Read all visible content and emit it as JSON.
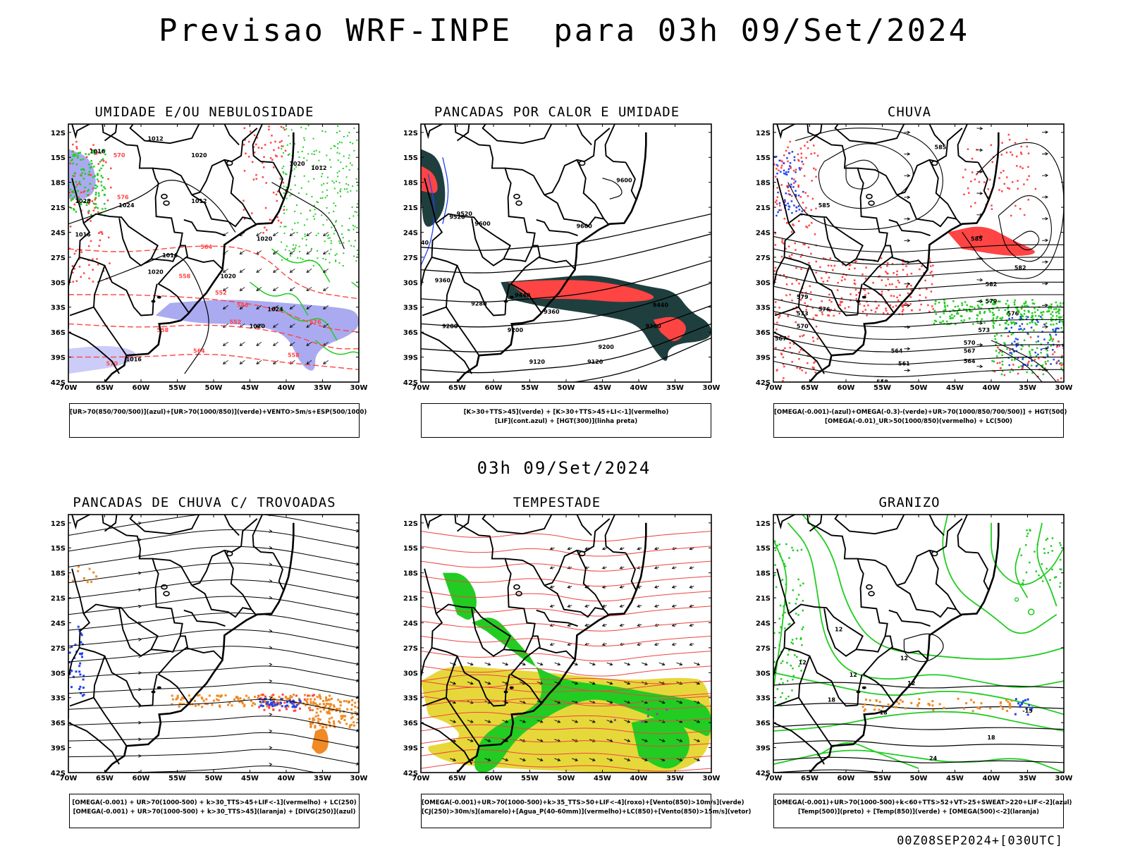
{
  "title": "Previsao WRF-INPE  para 03h 09/Set/2024",
  "mid_title": "03h 09/Set/2024",
  "footer": "00Z08SEP2024+[030UTC]",
  "axis": {
    "lat_labels": [
      "12S",
      "15S",
      "18S",
      "21S",
      "24S",
      "27S",
      "30S",
      "33S",
      "36S",
      "39S",
      "42S"
    ],
    "lon_labels": [
      "70W",
      "65W",
      "60W",
      "55W",
      "50W",
      "45W",
      "40W",
      "35W",
      "30W"
    ]
  },
  "colors": {
    "humid_blue": "#9b9bef",
    "humid_blue_light": "#c6c6f7",
    "green": "#22cc22",
    "red": "#ff4444",
    "dark_teal": "#1f3f3f",
    "blue": "#2244ee",
    "orange": "#f08a24",
    "yellow": "#e6d83a",
    "purple": "#9a3fb0"
  },
  "panels": [
    {
      "id": "umidade",
      "title": "UMIDADE E/OU NEBULOSIDADE",
      "legend": [
        "[UR>70(850/700/500)](azul)+[UR>70(1000/850)](verde)+VENTO>5m/s+ESP(500/1000)"
      ],
      "labels": [
        "1012",
        "1016",
        "1020",
        "1024",
        "1028",
        "1016",
        "1012",
        "1016",
        "1020",
        "1020",
        "1020",
        "1024",
        "1020",
        "1016",
        "1020",
        "1012",
        "570",
        "576",
        "564",
        "558",
        "552",
        "546",
        "552",
        "558",
        "564",
        "570",
        "576",
        "558"
      ]
    },
    {
      "id": "pancadas-calor",
      "title": "PANCADAS POR CALOR E UMIDADE",
      "legend": [
        "[K>30+TTS>45](verde) + [K>30+TTS>45+LI<-1](vermelho)",
        "[LIF](cont.azul) + [HGT(300)](linha preta)"
      ],
      "labels": [
        "9520",
        "9600",
        "9600",
        "9600",
        "9440",
        "9360",
        "9280",
        "9200",
        "9120",
        "9520",
        "9440",
        "9360",
        "9200",
        "9120",
        "9360",
        "9440",
        "9280"
      ]
    },
    {
      "id": "chuva",
      "title": "CHUVA",
      "legend": [
        "[OMEGA(-0.001)-(azul)+OMEGA(-0.3)-(verde)+UR>70(1000/850/700/500)] + HGT(500)",
        "[OMEGA(-0.01)_UR>50(1000/850)(vermelho) + LC(500)"
      ],
      "labels": [
        "585",
        "585",
        "585",
        "582",
        "579",
        "576",
        "573",
        "570",
        "567",
        "564",
        "561",
        "558",
        "582",
        "579",
        "576",
        "573",
        "570",
        "567",
        "564"
      ]
    },
    {
      "id": "trovoadas",
      "title": "PANCADAS DE CHUVA C/ TROVOADAS",
      "legend": [
        "[OMEGA(-0.001) + UR>70(1000-500) + k>30_TTS>45+LIF<-1](vermelho) + LC(250)",
        "[OMEGA(-0.001) + UR>70(1000-500) + k>30_TTS>45](laranja) + [DIVG(250)](azul)"
      ]
    },
    {
      "id": "tempestade",
      "title": "TEMPESTADE",
      "legend": [
        "[OMEGA(-0.001)+UR>70(1000-500)+k>35_TTS>50+LIF<-4](roxo)+[Vento(850)>10m/s](verde)",
        "[CJ(250)>30m/s](amarelo)+[Agua_P(40-60mm)](vermelho)+LC(850)+[Vento(850)>15m/s](vetor)"
      ]
    },
    {
      "id": "granizo",
      "title": "GRANIZO",
      "legend": [
        "[OMEGA(-0.001)+UR>70(1000-500)+k<60+TTS>52+VT>25+SWEAT>220+LIF<-2](azul)",
        "[Temp(500)](preto) + [Temp(850)](verde) + [OMEGA(500)<-2](laranja)"
      ],
      "labels": [
        "12",
        "12",
        "12",
        "18",
        "-18",
        "18",
        "24",
        "12",
        "-15",
        "12"
      ]
    }
  ]
}
